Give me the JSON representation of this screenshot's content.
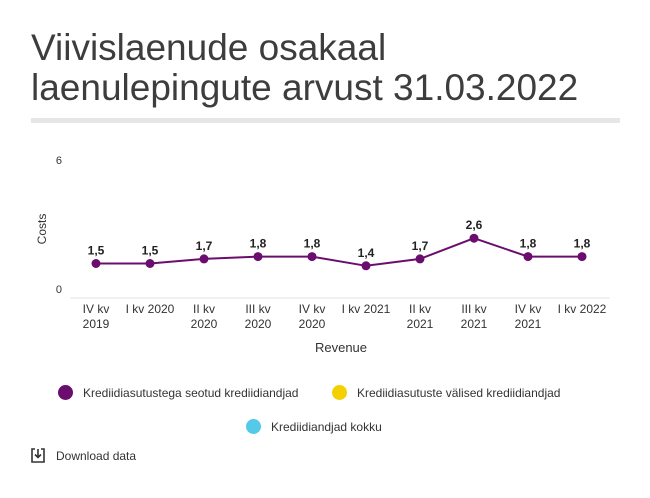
{
  "title_lines": [
    "Viivislaenude osakaal",
    "laenulepingute arvust 31.03.2022"
  ],
  "legend": [
    {
      "label": "Krediidiasutustega seotud krediidiandjad",
      "color": "#6b0d6e"
    },
    {
      "label": "Krediidiasutuste välised krediidiandjad",
      "color": "#f5d000"
    },
    {
      "label": "Krediidiandjad kokku",
      "color": "#55c9e8"
    }
  ],
  "download_label": "Download data",
  "chart_data": {
    "type": "line",
    "categories": [
      [
        "IV kv",
        "2019"
      ],
      [
        "I kv 2020"
      ],
      [
        "II kv",
        "2020"
      ],
      [
        "III kv",
        "2020"
      ],
      [
        "IV kv",
        "2020"
      ],
      [
        "I kv 2021"
      ],
      [
        "II kv",
        "2021"
      ],
      [
        "III kv",
        "2021"
      ],
      [
        "IV kv",
        "2021"
      ],
      [
        "I kv 2022"
      ]
    ],
    "series": [
      {
        "name": "Krediidiasutustega seotud krediidiandjad",
        "color": "#6b0d6e",
        "values": [
          1.5,
          1.5,
          1.7,
          1.8,
          1.8,
          1.4,
          1.7,
          2.6,
          1.8,
          1.8
        ],
        "labels": [
          "1,5",
          "1,5",
          "1,7",
          "1,8",
          "1,8",
          "1,4",
          "1,7",
          "2,6",
          "1,8",
          "1,8"
        ]
      }
    ],
    "xlabel": "Revenue",
    "ylabel": "Costs",
    "ylim": [
      0,
      6
    ],
    "yticks": [
      {
        "value": 0,
        "label": "0"
      },
      {
        "value": 6,
        "label": "6"
      }
    ],
    "grid": false,
    "legend_position": "bottom"
  }
}
